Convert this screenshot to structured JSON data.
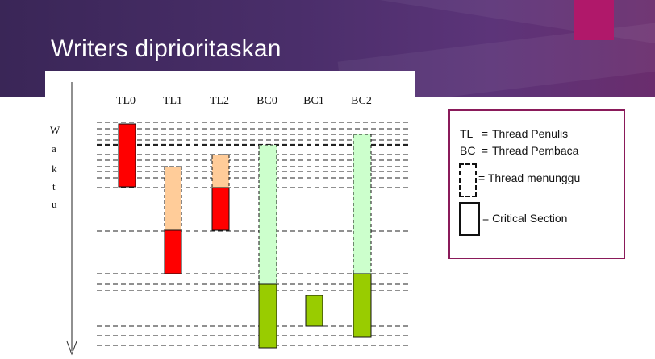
{
  "slide": {
    "title": "Writers diprioritaskan",
    "colors": {
      "banner": "#4a2e6a",
      "accent": "#b0186a",
      "legend_border": "#8a1a5a"
    }
  },
  "diagram": {
    "y_axis_label": [
      "W",
      "a",
      "k",
      "t",
      "u"
    ],
    "columns": [
      "TL0",
      "TL1",
      "TL2",
      "BC0",
      "BC1",
      "BC2"
    ],
    "colors": {
      "writer_cs": "#ff0000",
      "writer_wait": "#ffcc99",
      "reader_cs": "#99cc00",
      "reader_wait": "#ccffcc"
    }
  },
  "legend": {
    "tl_key": "TL",
    "tl_text": "Thread Penulis",
    "bc_key": "BC",
    "bc_text": "Thread Pembaca",
    "wait_text": "= Thread menunggu",
    "cs_text": "= Critical Section",
    "eq": "="
  }
}
